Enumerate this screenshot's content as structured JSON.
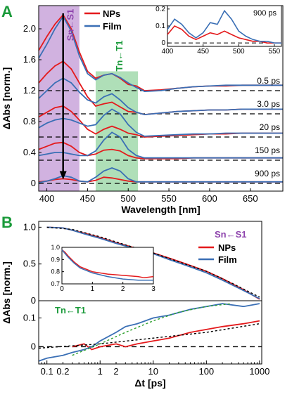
{
  "chart_data": [
    {
      "panel": "A",
      "type": "line",
      "xlabel": "Wavelength [nm]",
      "ylabel": "ΔAbs [norm.]",
      "xlim": [
        390,
        690
      ],
      "ylim": [
        -0.1,
        2.3
      ],
      "xticks": [
        400,
        450,
        500,
        550,
        600,
        650
      ],
      "yticks": [
        0,
        0.4,
        0.8,
        1.2,
        1.6,
        2.0
      ],
      "ytick_labels": [
        "0",
        "0.4",
        "0.8",
        "1.2",
        "1.6",
        "2.0"
      ],
      "band_labels": {
        "sn": "Sn←S1",
        "tn": "Tn←T1"
      },
      "bands": {
        "sn": [
          390,
          440
        ],
        "tn": [
          460,
          512
        ]
      },
      "legend": [
        "NPs",
        "Film"
      ],
      "delays": [
        "0.5 ps",
        "3.0 ps",
        "20 ps",
        "150 ps",
        "900 ps"
      ],
      "offsets": [
        1.2,
        0.9,
        0.6,
        0.3,
        0.0
      ],
      "series": [
        {
          "name": "NPs",
          "delay": "0.5 ps",
          "x": [
            390,
            400,
            410,
            420,
            430,
            440,
            450,
            460,
            470,
            480,
            490,
            500,
            510,
            520,
            540,
            560,
            580,
            600,
            620,
            640,
            660,
            690
          ],
          "y": [
            1.72,
            1.9,
            2.06,
            2.18,
            2.0,
            1.7,
            1.45,
            1.36,
            1.4,
            1.42,
            1.36,
            1.28,
            1.26,
            1.2,
            1.21,
            1.23,
            1.25,
            1.26,
            1.26,
            1.27,
            1.27,
            1.27
          ]
        },
        {
          "name": "Film",
          "delay": "0.5 ps",
          "x": [
            390,
            400,
            410,
            420,
            430,
            440,
            450,
            460,
            470,
            480,
            490,
            500,
            510,
            520,
            540,
            560,
            580,
            600,
            620,
            640,
            660,
            690
          ],
          "y": [
            1.62,
            1.8,
            2.0,
            2.16,
            1.97,
            1.65,
            1.42,
            1.34,
            1.4,
            1.42,
            1.37,
            1.3,
            1.24,
            1.19,
            1.2,
            1.23,
            1.25,
            1.26,
            1.27,
            1.27,
            1.27,
            1.27
          ]
        },
        {
          "name": "NPs",
          "delay": "3.0 ps",
          "x": [
            390,
            400,
            410,
            420,
            430,
            440,
            450,
            460,
            470,
            480,
            490,
            500,
            510,
            520,
            540,
            560,
            580,
            600,
            620,
            640,
            660,
            690
          ],
          "y": [
            1.3,
            1.42,
            1.52,
            1.58,
            1.48,
            1.3,
            1.12,
            1.0,
            1.03,
            1.05,
            0.99,
            0.93,
            0.92,
            0.89,
            0.91,
            0.93,
            0.94,
            0.95,
            0.95,
            0.96,
            0.96,
            0.96
          ]
        },
        {
          "name": "Film",
          "delay": "3.0 ps",
          "x": [
            390,
            400,
            410,
            420,
            430,
            440,
            450,
            460,
            470,
            480,
            490,
            500,
            510,
            520,
            540,
            560,
            580,
            600,
            620,
            640,
            660,
            690
          ],
          "y": [
            1.1,
            1.2,
            1.3,
            1.36,
            1.3,
            1.18,
            1.08,
            1.04,
            1.12,
            1.16,
            1.08,
            0.98,
            0.92,
            0.89,
            0.91,
            0.93,
            0.94,
            0.95,
            0.95,
            0.96,
            0.96,
            0.96
          ]
        },
        {
          "name": "NPs",
          "delay": "20 ps",
          "x": [
            390,
            400,
            410,
            420,
            430,
            440,
            450,
            460,
            470,
            480,
            490,
            500,
            510,
            520,
            540,
            560,
            580,
            600,
            620,
            640,
            660,
            690
          ],
          "y": [
            0.86,
            0.92,
            0.98,
            1.0,
            0.93,
            0.82,
            0.7,
            0.64,
            0.7,
            0.74,
            0.7,
            0.65,
            0.63,
            0.6,
            0.61,
            0.62,
            0.63,
            0.64,
            0.64,
            0.65,
            0.65,
            0.65
          ]
        },
        {
          "name": "Film",
          "delay": "20 ps",
          "x": [
            390,
            400,
            410,
            420,
            430,
            440,
            450,
            460,
            470,
            480,
            490,
            500,
            510,
            520,
            540,
            560,
            580,
            600,
            620,
            640,
            660,
            690
          ],
          "y": [
            0.72,
            0.78,
            0.82,
            0.84,
            0.82,
            0.78,
            0.74,
            0.76,
            0.88,
            0.96,
            0.9,
            0.76,
            0.66,
            0.61,
            0.62,
            0.63,
            0.64,
            0.64,
            0.65,
            0.65,
            0.65,
            0.65
          ]
        },
        {
          "name": "NPs",
          "delay": "150 ps",
          "x": [
            390,
            400,
            410,
            420,
            430,
            440,
            450,
            460,
            470,
            480,
            490,
            500,
            510,
            520,
            540,
            560,
            580,
            600,
            620,
            640,
            660,
            690
          ],
          "y": [
            0.44,
            0.48,
            0.52,
            0.53,
            0.48,
            0.4,
            0.36,
            0.38,
            0.43,
            0.44,
            0.42,
            0.36,
            0.33,
            0.32,
            0.32,
            0.32,
            0.33,
            0.33,
            0.33,
            0.33,
            0.33,
            0.33
          ]
        },
        {
          "name": "Film",
          "delay": "150 ps",
          "x": [
            390,
            400,
            410,
            420,
            430,
            440,
            450,
            460,
            470,
            480,
            490,
            500,
            510,
            520,
            540,
            560,
            580,
            600,
            620,
            640,
            660,
            690
          ],
          "y": [
            0.36,
            0.38,
            0.4,
            0.4,
            0.38,
            0.36,
            0.36,
            0.42,
            0.56,
            0.66,
            0.6,
            0.44,
            0.36,
            0.33,
            0.33,
            0.33,
            0.33,
            0.33,
            0.33,
            0.33,
            0.33,
            0.33
          ]
        },
        {
          "name": "NPs",
          "delay": "900 ps",
          "x": [
            390,
            400,
            410,
            420,
            430,
            440,
            450,
            460,
            470,
            480,
            490,
            500,
            510,
            520,
            540,
            560,
            580,
            600,
            620,
            640,
            660,
            690
          ],
          "y": [
            0.02,
            0.03,
            0.05,
            0.06,
            0.05,
            0.03,
            0.02,
            0.04,
            0.08,
            0.07,
            0.05,
            0.03,
            0.02,
            0.02,
            0.02,
            0.02,
            0.02,
            0.02,
            0.02,
            0.02,
            0.02,
            0.02
          ]
        },
        {
          "name": "Film",
          "delay": "900 ps",
          "x": [
            390,
            400,
            410,
            420,
            430,
            440,
            450,
            460,
            470,
            480,
            490,
            500,
            510,
            520,
            540,
            560,
            580,
            600,
            620,
            640,
            660,
            690
          ],
          "y": [
            0.01,
            0.03,
            0.06,
            0.1,
            0.08,
            0.03,
            0.02,
            0.08,
            0.16,
            0.2,
            0.16,
            0.06,
            0.02,
            0.02,
            0.02,
            0.02,
            0.02,
            0.02,
            0.02,
            0.02,
            0.02,
            0.02
          ]
        }
      ],
      "arrow": {
        "from": 2.2,
        "to": 0.05,
        "x": 420
      },
      "inset": {
        "label": "900 ps",
        "xlim": [
          400,
          560
        ],
        "ylim": [
          -0.02,
          0.22
        ],
        "xticks": [
          400,
          450,
          500,
          550
        ],
        "yticks": [
          0,
          0.1,
          0.2
        ],
        "ytick_labels": [
          "0",
          "0.1",
          "0.2"
        ],
        "series": [
          {
            "name": "NPs",
            "x": [
              400,
              410,
              420,
              430,
              440,
              450,
              460,
              470,
              480,
              490,
              500,
              510,
              520,
              530,
              540,
              550,
              560
            ],
            "y": [
              0.05,
              0.1,
              0.08,
              0.04,
              0.02,
              0.04,
              0.06,
              0.05,
              0.07,
              0.05,
              0.03,
              0.02,
              0.01,
              0.01,
              0.0,
              0.0,
              0.0
            ]
          },
          {
            "name": "Film",
            "x": [
              400,
              410,
              420,
              430,
              440,
              450,
              460,
              470,
              480,
              490,
              500,
              510,
              520,
              530,
              540,
              550,
              560
            ],
            "y": [
              0.08,
              0.14,
              0.11,
              0.06,
              0.03,
              0.06,
              0.12,
              0.11,
              0.19,
              0.14,
              0.07,
              0.04,
              0.02,
              0.01,
              0.01,
              0.0,
              0.0
            ]
          }
        ]
      }
    },
    {
      "panel": "B",
      "type": "line",
      "xlabel": "Δt [ps]",
      "ylabel": "ΔAbs [norm.]",
      "xscale": "log",
      "xlim": [
        0.07,
        1100
      ],
      "xticks": [
        0.1,
        0.2,
        1,
        2,
        10,
        100,
        1000
      ],
      "xtick_labels": [
        "0.1",
        "0.2",
        "1",
        "2",
        "10",
        "100",
        "1000"
      ],
      "legend": [
        "NPs",
        "Film"
      ],
      "top": {
        "label": "Sn←S1",
        "ylim": [
          0.0,
          1.08
        ],
        "yticks": [
          0,
          0.5,
          1.0
        ],
        "ytick_labels": [
          "0",
          "0.5",
          "1.0"
        ],
        "series": [
          {
            "name": "NPs",
            "x": [
              0.1,
              0.2,
              0.3,
              0.5,
              1,
              2,
              5,
              10,
              20,
              50,
              100,
              200,
              500,
              1000
            ],
            "y": [
              1.0,
              0.99,
              0.96,
              0.92,
              0.86,
              0.79,
              0.71,
              0.65,
              0.58,
              0.48,
              0.4,
              0.3,
              0.15,
              0.02
            ]
          },
          {
            "name": "Film",
            "x": [
              0.1,
              0.2,
              0.3,
              0.5,
              1,
              2,
              5,
              10,
              20,
              50,
              100,
              200,
              500,
              1000
            ],
            "y": [
              1.0,
              0.99,
              0.96,
              0.91,
              0.85,
              0.78,
              0.7,
              0.64,
              0.56,
              0.46,
              0.38,
              0.28,
              0.14,
              0.03
            ]
          },
          {
            "name": "fit",
            "x": [
              0.1,
              0.3,
              1,
              3,
              10,
              30,
              100,
              300,
              1000
            ],
            "y": [
              1.0,
              0.97,
              0.87,
              0.76,
              0.65,
              0.53,
              0.4,
              0.24,
              0.05
            ]
          }
        ],
        "inset": {
          "xlim": [
            0,
            3
          ],
          "ylim": [
            0.7,
            1.0
          ],
          "xticks": [
            0,
            1,
            2,
            3
          ],
          "yticks": [
            0.7,
            0.8,
            0.9,
            1.0
          ],
          "ytick_labels": [
            "0.7",
            "0.8",
            "0.9",
            "1.0"
          ],
          "series": [
            {
              "name": "NPs",
              "x": [
                0,
                0.1,
                0.2,
                0.4,
                0.6,
                1.0,
                1.5,
                2.0,
                2.5,
                2.7,
                3.0
              ],
              "y": [
                0.98,
                0.96,
                0.93,
                0.88,
                0.84,
                0.8,
                0.78,
                0.77,
                0.76,
                0.75,
                0.76
              ]
            },
            {
              "name": "Film",
              "x": [
                0,
                0.1,
                0.2,
                0.4,
                0.6,
                1.0,
                1.5,
                2.0,
                2.5,
                3.0
              ],
              "y": [
                0.98,
                0.95,
                0.92,
                0.87,
                0.83,
                0.79,
                0.76,
                0.74,
                0.73,
                0.73
              ]
            }
          ]
        }
      },
      "bottom": {
        "label": "Tn←T1",
        "ylim": [
          -0.06,
          0.16
        ],
        "yticks": [
          0,
          0.1
        ],
        "ytick_labels": [
          "0",
          "0.1"
        ],
        "series": [
          {
            "name": "NPs",
            "x": [
              0.3,
              0.5,
              0.7,
              1,
              2,
              3,
              5,
              10,
              20,
              50,
              100,
              200,
              500,
              1000
            ],
            "y": [
              0.0,
              0.01,
              -0.01,
              0.0,
              0.01,
              0.0,
              0.01,
              0.02,
              0.03,
              0.05,
              0.06,
              0.07,
              0.08,
              0.09
            ]
          },
          {
            "name": "Film",
            "x": [
              0.07,
              0.1,
              0.2,
              0.3,
              0.5,
              0.7,
              1,
              2,
              3,
              5,
              10,
              20,
              50,
              100,
              200,
              500,
              1000
            ],
            "y": [
              -0.05,
              -0.04,
              -0.03,
              -0.02,
              -0.01,
              0.0,
              0.02,
              0.05,
              0.07,
              0.08,
              0.1,
              0.11,
              0.13,
              0.14,
              0.15,
              0.14,
              0.15
            ]
          },
          {
            "name": "fit",
            "x": [
              0.3,
              1,
              3,
              10,
              30,
              100,
              300
            ],
            "y": [
              -0.03,
              0.01,
              0.05,
              0.09,
              0.12,
              0.14,
              0.15
            ]
          },
          {
            "name": "fit2",
            "x": [
              0.07,
              1,
              10,
              100,
              1000
            ],
            "y": [
              -0.005,
              0.01,
              0.03,
              0.05,
              0.08
            ]
          }
        ]
      }
    }
  ],
  "panel_labels": [
    "A",
    "B"
  ],
  "colors": {
    "nps": "#e41a1c",
    "film": "#3a6fb5",
    "sn": "#8e44ad",
    "tn": "#1a9a3a"
  }
}
